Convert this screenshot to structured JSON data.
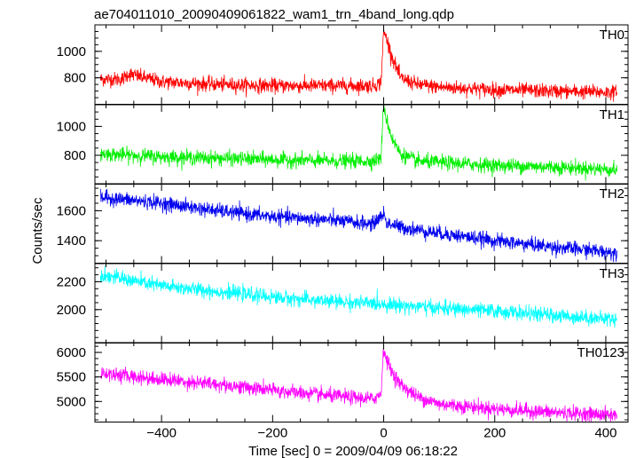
{
  "chart_data": {
    "type": "line",
    "title": "ae704011010_20090409061822_wam1_trn_4band_long.qdp",
    "xlabel": "Time [sec] 0 = 2009/04/09 06:18:22",
    "ylabel": "Counts/sec",
    "xlim": [
      -520,
      440
    ],
    "x_ticks": [
      -400,
      -200,
      0,
      200,
      400
    ],
    "x_tick_labels": [
      "−400",
      "−200",
      "0",
      "200",
      "400"
    ],
    "grid": false,
    "series": [
      {
        "name": "TH0",
        "color": "#ff0000",
        "ylim": [
          600,
          1200
        ],
        "y_ticks": [
          800,
          1000
        ],
        "x": [
          -510,
          -470,
          -460,
          -400,
          -300,
          -200,
          -100,
          -20,
          -5,
          0,
          5,
          15,
          30,
          60,
          100,
          200,
          300,
          420
        ],
        "y": [
          790,
          790,
          830,
          770,
          750,
          740,
          740,
          740,
          760,
          1150,
          1100,
          960,
          800,
          750,
          730,
          710,
          700,
          690
        ]
      },
      {
        "name": "TH1",
        "color": "#00ee00",
        "ylim": [
          600,
          1150
        ],
        "y_ticks": [
          800,
          1000
        ],
        "x": [
          -510,
          -400,
          -300,
          -200,
          -100,
          -20,
          -5,
          0,
          5,
          15,
          30,
          60,
          100,
          200,
          300,
          420
        ],
        "y": [
          810,
          790,
          780,
          770,
          760,
          760,
          780,
          1150,
          1050,
          920,
          810,
          760,
          750,
          730,
          720,
          700
        ]
      },
      {
        "name": "TH2",
        "color": "#0000ee",
        "ylim": [
          1250,
          1780
        ],
        "y_ticks": [
          1400,
          1600
        ],
        "x": [
          -510,
          -400,
          -300,
          -200,
          -100,
          -20,
          0,
          5,
          30,
          100,
          200,
          300,
          420
        ],
        "y": [
          1690,
          1650,
          1600,
          1560,
          1540,
          1510,
          1580,
          1520,
          1490,
          1450,
          1400,
          1360,
          1320
        ]
      },
      {
        "name": "TH3",
        "color": "#00ffff",
        "ylim": [
          1760,
          2330
        ],
        "y_ticks": [
          2000,
          2200
        ],
        "x": [
          -510,
          -400,
          -300,
          -200,
          -100,
          0,
          100,
          200,
          300,
          420
        ],
        "y": [
          2250,
          2170,
          2130,
          2090,
          2060,
          2040,
          2010,
          1990,
          1960,
          1930
        ]
      },
      {
        "name": "TH0123",
        "color": "#ff00ff",
        "ylim": [
          4580,
          6200
        ],
        "y_ticks": [
          5000,
          5500,
          6000
        ],
        "x": [
          -510,
          -400,
          -300,
          -200,
          -100,
          -20,
          -5,
          0,
          5,
          15,
          30,
          60,
          100,
          200,
          300,
          420
        ],
        "y": [
          5580,
          5450,
          5350,
          5230,
          5120,
          5050,
          5150,
          6100,
          5850,
          5600,
          5350,
          5100,
          4950,
          4850,
          4780,
          4720
        ]
      }
    ]
  }
}
